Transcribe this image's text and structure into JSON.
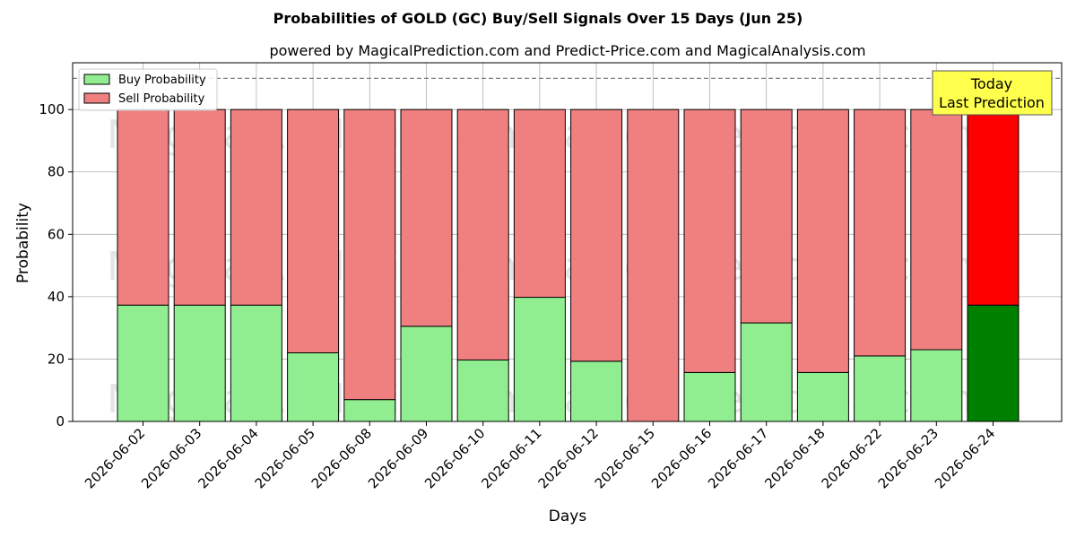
{
  "chart_data": {
    "type": "bar",
    "stacked": true,
    "title": "Probabilities of GOLD (GC) Buy/Sell Signals Over 15 Days (Jun 25)",
    "subtitle": "powered by MagicalPrediction.com and Predict-Price.com and MagicalAnalysis.com",
    "xlabel": "Days",
    "ylabel": "Probability",
    "ylim": [
      0,
      115
    ],
    "yticks": [
      0,
      20,
      40,
      60,
      80,
      100
    ],
    "grid": true,
    "legend_position": "top-left",
    "reference_line": 110,
    "categories": [
      "2026-06-02",
      "2026-06-03",
      "2026-06-04",
      "2026-06-05",
      "2026-06-08",
      "2026-06-09",
      "2026-06-10",
      "2026-06-11",
      "2026-06-12",
      "2026-06-15",
      "2026-06-16",
      "2026-06-17",
      "2026-06-18",
      "2026-06-22",
      "2026-06-23",
      "2026-06-24"
    ],
    "series": [
      {
        "name": "Buy Probability",
        "color": "#90ee90",
        "highlight_color": "#008000",
        "values": [
          37.3,
          37.3,
          37.3,
          22.0,
          7.0,
          30.5,
          19.7,
          39.8,
          19.3,
          0,
          15.7,
          31.6,
          15.7,
          21.0,
          23.0,
          37.3
        ]
      },
      {
        "name": "Sell Probability",
        "color": "#f08080",
        "highlight_color": "#ff0000",
        "values": [
          62.7,
          62.7,
          62.7,
          78.0,
          93.0,
          69.5,
          80.3,
          60.2,
          80.7,
          100,
          84.3,
          68.4,
          84.3,
          79.0,
          77.0,
          62.7
        ]
      }
    ],
    "highlight_index": 15,
    "annotation": {
      "lines": [
        "Today",
        "Last Prediction"
      ],
      "color": "#ffff4d"
    },
    "watermarks": [
      "MagicalAnalysis.com",
      "MagicalPrediction.com"
    ]
  }
}
